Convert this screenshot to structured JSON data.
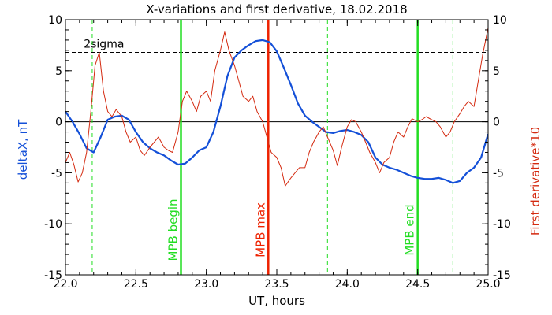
{
  "chart_data": {
    "type": "line",
    "title": "X-variations and first derivative, 18.02.2018",
    "xlabel": "UT, hours",
    "ylabel_left": "deltaX, nT",
    "ylabel_right": "First derivative*10",
    "xlim": [
      22.0,
      25.0
    ],
    "ylim": [
      -15,
      10
    ],
    "x_ticks": [
      "22.0",
      "22.5",
      "23.0",
      "23.5",
      "24.0",
      "24.5",
      "25.0"
    ],
    "y_ticks": [
      "10",
      "5",
      "0",
      "-5",
      "-10",
      "-15"
    ],
    "colors": {
      "deltaX": "#1450d8",
      "derivative": "#d42a10",
      "mpb": "#22dd22",
      "max": "#ee2200"
    },
    "series": [
      {
        "key": "deltaX",
        "x": [
          22.0,
          22.05,
          22.1,
          22.15,
          22.2,
          22.25,
          22.3,
          22.35,
          22.4,
          22.45,
          22.5,
          22.55,
          22.6,
          22.65,
          22.7,
          22.75,
          22.8,
          22.85,
          22.9,
          22.95,
          23.0,
          23.05,
          23.1,
          23.15,
          23.2,
          23.25,
          23.3,
          23.35,
          23.4,
          23.45,
          23.5,
          23.55,
          23.6,
          23.65,
          23.7,
          23.75,
          23.8,
          23.85,
          23.9,
          23.95,
          24.0,
          24.05,
          24.1,
          24.15,
          24.2,
          24.25,
          24.3,
          24.35,
          24.4,
          24.45,
          24.5,
          24.55,
          24.6,
          24.65,
          24.7,
          24.75,
          24.8,
          24.85,
          24.9,
          24.95,
          25.0
        ],
        "y": [
          1.0,
          0.0,
          -1.2,
          -2.6,
          -3.0,
          -1.5,
          0.2,
          0.5,
          0.6,
          0.2,
          -1.0,
          -2.0,
          -2.6,
          -3.0,
          -3.3,
          -3.8,
          -4.2,
          -4.1,
          -3.5,
          -2.8,
          -2.5,
          -1.0,
          1.5,
          4.5,
          6.3,
          7.0,
          7.5,
          7.9,
          8.0,
          7.8,
          6.9,
          5.3,
          3.6,
          1.8,
          0.6,
          0.0,
          -0.5,
          -1.0,
          -1.1,
          -0.9,
          -0.8,
          -1.0,
          -1.3,
          -2.0,
          -3.5,
          -4.2,
          -4.5,
          -4.7,
          -5.0,
          -5.3,
          -5.5,
          -5.6,
          -5.6,
          -5.5,
          -5.7,
          -6.0,
          -5.8,
          -5.0,
          -4.5,
          -3.5,
          -1.2
        ]
      },
      {
        "key": "derivative",
        "x": [
          22.0,
          22.03,
          22.06,
          22.09,
          22.12,
          22.15,
          22.18,
          22.21,
          22.24,
          22.27,
          22.3,
          22.33,
          22.36,
          22.4,
          22.43,
          22.46,
          22.5,
          22.53,
          22.56,
          22.6,
          22.63,
          22.66,
          22.7,
          22.73,
          22.76,
          22.8,
          22.83,
          22.86,
          22.9,
          22.93,
          22.96,
          23.0,
          23.03,
          23.06,
          23.1,
          23.13,
          23.16,
          23.2,
          23.23,
          23.26,
          23.3,
          23.33,
          23.36,
          23.4,
          23.43,
          23.46,
          23.5,
          23.53,
          23.56,
          23.6,
          23.63,
          23.66,
          23.7,
          23.73,
          23.76,
          23.8,
          23.83,
          23.86,
          23.9,
          23.93,
          23.96,
          24.0,
          24.03,
          24.06,
          24.1,
          24.13,
          24.16,
          24.2,
          24.23,
          24.26,
          24.3,
          24.33,
          24.36,
          24.4,
          24.43,
          24.46,
          24.5,
          24.53,
          24.56,
          24.6,
          24.63,
          24.66,
          24.7,
          24.73,
          24.76,
          24.8,
          24.83,
          24.86,
          24.9,
          24.93,
          24.96,
          25.0
        ],
        "y": [
          -4.0,
          -3.0,
          -4.2,
          -5.9,
          -5.0,
          -3.0,
          1.0,
          5.5,
          6.8,
          3.0,
          1.0,
          0.5,
          1.2,
          0.5,
          -1.0,
          -2.0,
          -1.5,
          -2.8,
          -3.3,
          -2.5,
          -2.0,
          -1.5,
          -2.5,
          -2.8,
          -3.0,
          -1.0,
          2.0,
          3.0,
          2.0,
          1.0,
          2.5,
          3.0,
          2.0,
          5.0,
          7.0,
          8.8,
          7.0,
          5.5,
          4.0,
          2.5,
          2.0,
          2.5,
          1.0,
          0.0,
          -1.5,
          -3.0,
          -3.5,
          -4.5,
          -6.3,
          -5.5,
          -5.0,
          -4.5,
          -4.5,
          -3.0,
          -2.0,
          -1.0,
          -0.5,
          -1.5,
          -2.8,
          -4.3,
          -2.5,
          -0.5,
          0.2,
          0.0,
          -1.0,
          -2.0,
          -3.0,
          -4.0,
          -5.0,
          -4.0,
          -3.5,
          -2.0,
          -1.0,
          -1.5,
          -0.5,
          0.3,
          0.0,
          0.2,
          0.5,
          0.2,
          0.0,
          -0.5,
          -1.5,
          -1.0,
          0.0,
          0.8,
          1.5,
          2.0,
          1.5,
          4.0,
          6.5,
          9.2
        ]
      }
    ],
    "reference_lines": [
      {
        "kind": "horizontal",
        "y": 0,
        "style": "solid",
        "color": "#000000",
        "label": ""
      },
      {
        "kind": "horizontal",
        "y": 6.8,
        "style": "dashed",
        "color": "#000000",
        "label": "2sigma"
      }
    ],
    "vertical_lines": [
      {
        "x": 22.19,
        "style": "dashed",
        "color": "#22dd22",
        "label": ""
      },
      {
        "x": 22.82,
        "style": "solid",
        "color": "#22dd22",
        "label": "MPB begin"
      },
      {
        "x": 23.44,
        "style": "solid",
        "color": "#ee2200",
        "label": "MPB max"
      },
      {
        "x": 23.86,
        "style": "dashed",
        "color": "#22dd22",
        "label": ""
      },
      {
        "x": 24.5,
        "style": "solid",
        "color": "#22dd22",
        "label": "MPB end"
      },
      {
        "x": 24.75,
        "style": "dashed",
        "color": "#22dd22",
        "label": ""
      }
    ]
  }
}
